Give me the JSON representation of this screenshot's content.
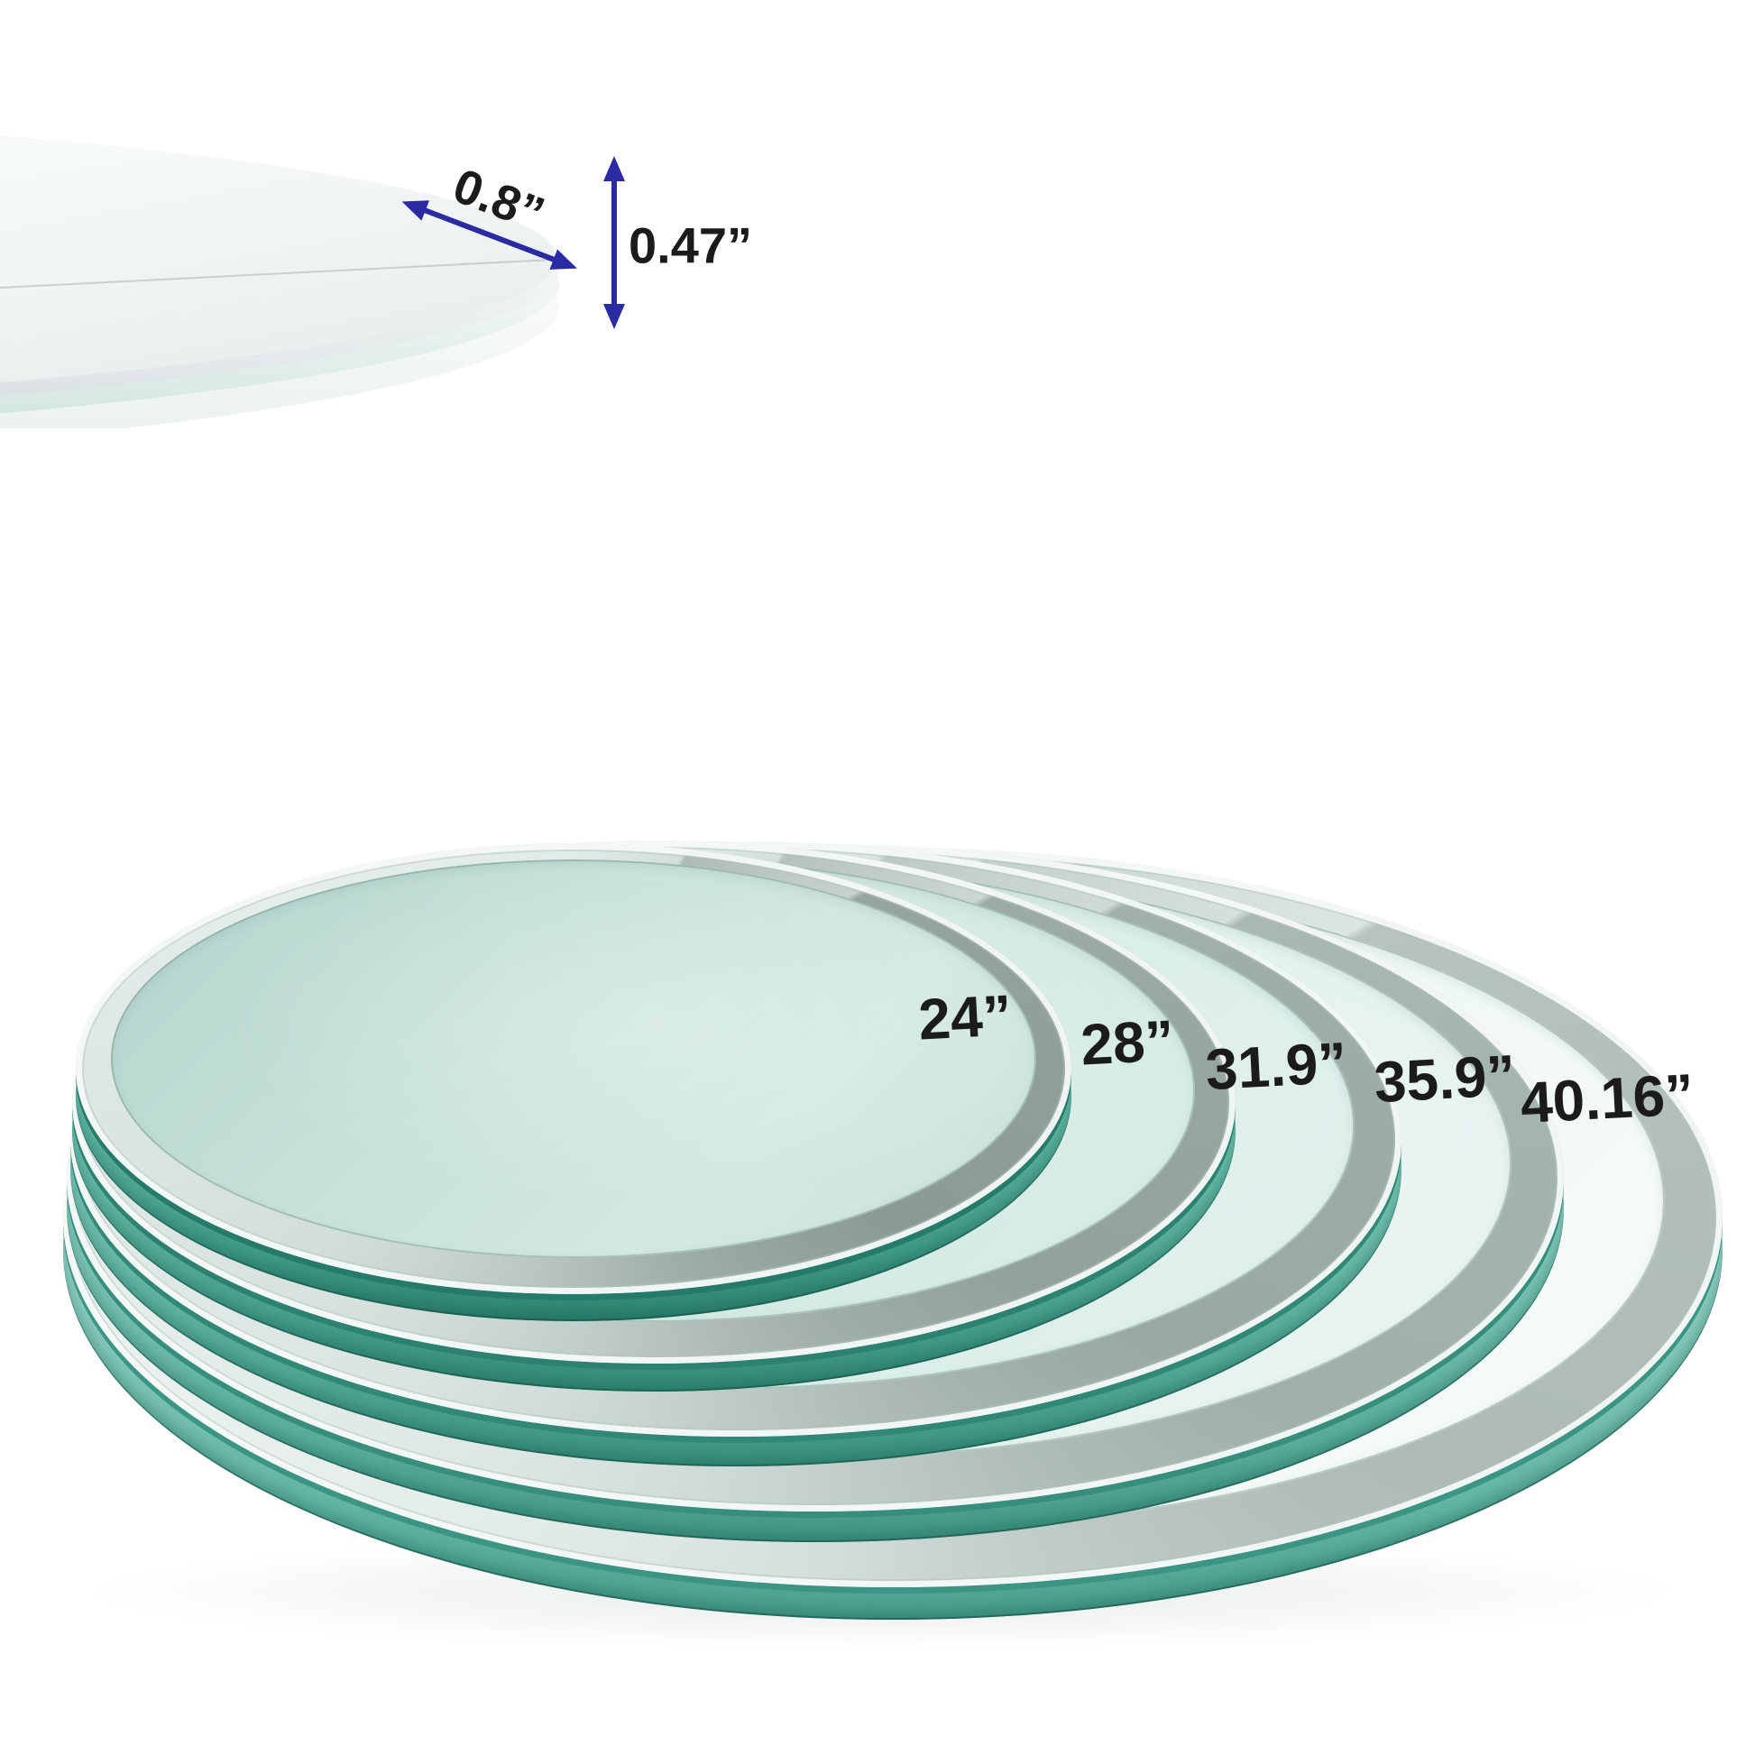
{
  "edge_detail": {
    "bevel_width_label": "0.8”",
    "thickness_label": "0.47”"
  },
  "stack": {
    "sizes": [
      {
        "label": "24”"
      },
      {
        "label": "28”"
      },
      {
        "label": "31.9”"
      },
      {
        "label": "35.9”"
      },
      {
        "label": "40.16”"
      }
    ]
  },
  "palette": {
    "background": "#ffffff",
    "arrow_blue": "#2a2aa2",
    "label_text": "#1b1b1b",
    "glass_mint": "#cde6e1",
    "glass_pale": "#eaf5f4",
    "edge_teal": "#5fb5a2",
    "bevel_gray": "#9aa8a4",
    "seam_teal": "#2c8170"
  }
}
